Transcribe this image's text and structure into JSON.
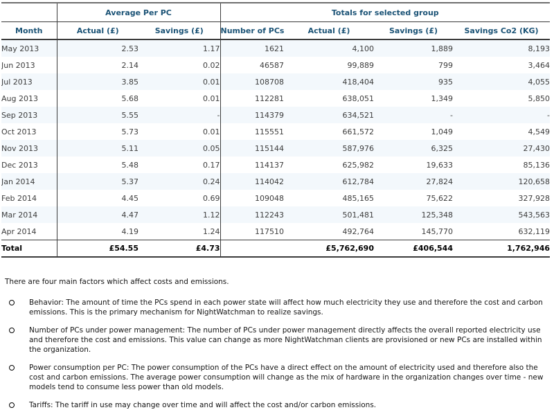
{
  "table": {
    "groups": [
      "",
      "Average Per PC",
      "Totals for selected group"
    ],
    "columns": [
      "Month",
      "Actual (£)",
      "Savings (£)",
      "Number of PCs",
      "Actual (£)",
      "Savings (£)",
      "Savings Co2 (KG)"
    ],
    "rows": [
      [
        "May 2013",
        "2.53",
        "1.17",
        "1621",
        "4,100",
        "1,889",
        "8,193"
      ],
      [
        "Jun 2013",
        "2.14",
        "0.02",
        "46587",
        "99,889",
        "799",
        "3,464"
      ],
      [
        "Jul 2013",
        "3.85",
        "0.01",
        "108708",
        "418,404",
        "935",
        "4,055"
      ],
      [
        "Aug 2013",
        "5.68",
        "0.01",
        "112281",
        "638,051",
        "1,349",
        "5,850"
      ],
      [
        "Sep 2013",
        "5.55",
        "-",
        "114379",
        "634,521",
        "-",
        "-"
      ],
      [
        "Oct 2013",
        "5.73",
        "0.01",
        "115551",
        "661,572",
        "1,049",
        "4,549"
      ],
      [
        "Nov 2013",
        "5.11",
        "0.05",
        "115144",
        "587,976",
        "6,325",
        "27,430"
      ],
      [
        "Dec 2013",
        "5.48",
        "0.17",
        "114137",
        "625,982",
        "19,633",
        "85,136"
      ],
      [
        "Jan 2014",
        "5.37",
        "0.24",
        "114042",
        "612,784",
        "27,824",
        "120,658"
      ],
      [
        "Feb 2014",
        "4.45",
        "0.69",
        "109048",
        "485,165",
        "75,622",
        "327,928"
      ],
      [
        "Mar 2014",
        "4.47",
        "1.12",
        "112243",
        "501,481",
        "125,348",
        "543,563"
      ],
      [
        "Apr 2014",
        "4.19",
        "1.24",
        "117510",
        "492,764",
        "145,770",
        "632,119"
      ]
    ],
    "total": [
      "Total",
      "£54.55",
      "£4.73",
      "",
      "£5,762,690",
      "£406,544",
      "1,762,946"
    ]
  },
  "notes": {
    "intro": "There are four main factors which affect costs and emissions.",
    "bullets": [
      "Behavior: The amount of time the PCs spend in each power state will affect how much electricity they use and therefore the cost and carbon emissions. This is the primary mechanism for NightWatchman to realize savings.",
      "Number of PCs under power management: The number of PCs under power management directly affects the overall reported electricity use and therefore the cost and emissions. This value can change as more NightWatchman clients are provisioned or new PCs are installed within the organization.",
      "Power consumption per PC: The power consumption of the PCs have a direct effect on the amount of electricity used and therefore also the cost and carbon emissions. The average power consumption will change as the mix of hardware in the organization changes over time - new models tend to consume less power than old models.",
      "Tariffs: The tariff in use may change over time and will affect the cost and/or carbon emissions."
    ]
  },
  "colors": {
    "header_text": "#1b5376",
    "row_stripe": "#f3f8fc",
    "border_dark": "#3b3b3b",
    "border_top": "#6e6e6e",
    "data_text": "#3d3d3d"
  }
}
